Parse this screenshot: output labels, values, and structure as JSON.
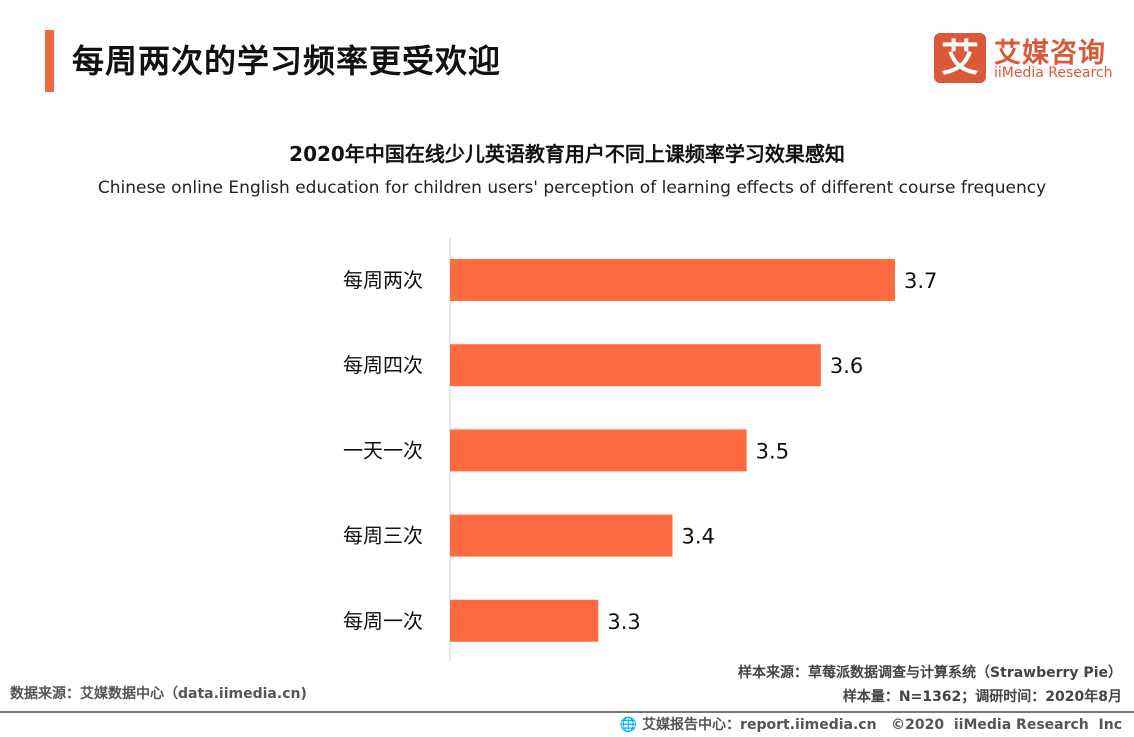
{
  "header": {
    "title": "每周两次的学习频率更受欢迎"
  },
  "logo": {
    "mark": "艾",
    "name_cn": "艾媒咨询",
    "name_en": "iiMedia Research"
  },
  "colors": {
    "accent": "#f0683f",
    "bar": "#ff6b40",
    "logo": "#d9593a"
  },
  "chart_data": {
    "type": "bar",
    "orientation": "horizontal",
    "title": "2020年中国在线少儿英语教育用户不同上课频率学习效果感知",
    "subtitle": "Chinese online English education for children users' perception of learning effects of different course frequency",
    "categories": [
      "每周两次",
      "每周四次",
      "一天一次",
      "每周三次",
      "每周一次"
    ],
    "values": [
      3.7,
      3.6,
      3.5,
      3.4,
      3.3
    ],
    "xlim": [
      3.1,
      3.7
    ],
    "grid": false,
    "legend": "none"
  },
  "notes": {
    "sample_source": "样本来源：草莓派数据调查与计算系统（Strawberry Pie）",
    "sample_info": "样本量：N=1362；调研时间：2020年8月",
    "data_source": "数据来源：艾媒数据中心（data.iimedia.cn)"
  },
  "footer": {
    "text": "艾媒报告中心：report.iimedia.cn   ©2020  iiMedia Research  Inc",
    "icon": "globe-icon"
  }
}
